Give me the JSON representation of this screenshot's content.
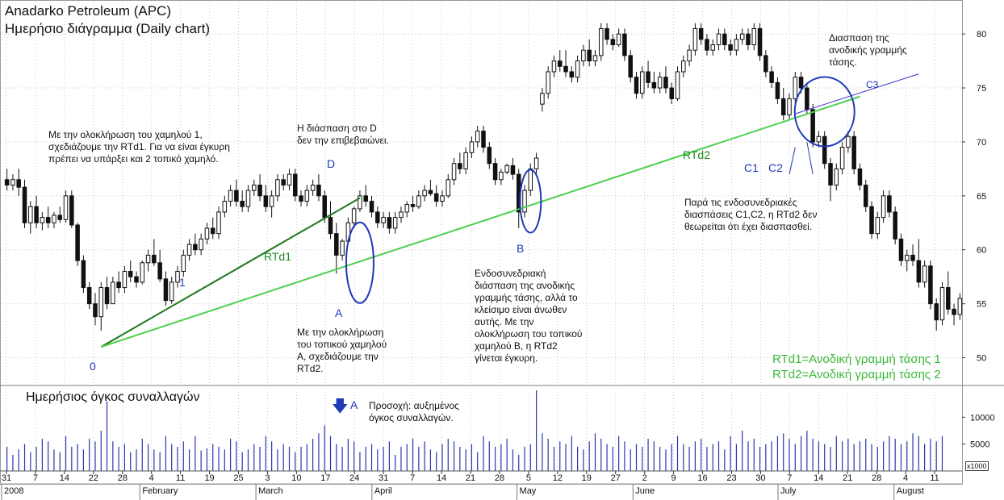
{
  "titles": {
    "line1": "Anadarko Petroleum (APC)",
    "line2": "Ημερήσιο διάγραμμα (Daily chart)"
  },
  "volume_title": "Ημερήσιος όγκος συναλλαγών",
  "volume_units": "x1000",
  "labels": {
    "zero": "0",
    "one": "1",
    "D": "D",
    "A": "A",
    "B": "B",
    "C1": "C1",
    "C2": "C2",
    "C3": "C3",
    "rtd1": "RTd1",
    "rtd2": "RTd2",
    "vol_A": "A"
  },
  "notes": {
    "n1": "Με την ολοκλήρωση του χαμηλού 1,\nσχεδιάζουμε την RTd1. Για να είναι έγκυρη\nπρέπει να υπάρξει και 2 τοπικό χαμηλό.",
    "n2": "Η διάσπαση στο D\nδεν την επιβεβαιώνει.",
    "n3": "Με την ολοκλήρωση\nτου τοπικού χαμηλού\nA, σχεδιάζουμε την\nRTd2.",
    "n4": "Ενδοσυνεδριακή\nδιάσπαση της ανοδικής\nγραμμής τάσης, αλλά το\nκλείσιμο είναι άνωθεν\nαυτής. Με την\nολοκλήρωση του τοπικού\nχαμηλού B, η RTd2\nγίνεται έγκυρη.",
    "n5": "Διασπαση της\nανοδικής γραμμής\nτάσης.",
    "n6": "Παρά τις ενδοσυνεδριακές\nδιασπάσεις C1,C2, η RTd2 δεν\nθεωρείται ότι έχει διασπασθεί.",
    "n7": "Προσοχή: αυξημένος\nόγκος συναλλαγών."
  },
  "legend": {
    "line1": "RTd1=Ανοδική γραμμή τάσης 1",
    "line2": "RTd2=Ανοδική γραμμή τάσης 2"
  },
  "colors": {
    "bg": "#ffffff",
    "candle": "#111111",
    "volume": "#2a35b0",
    "rtd1": "#1f7a1f",
    "rtd2": "#4fcf4f",
    "circle": "#1f39b8",
    "c3": "#3a3acc"
  },
  "chart_data": {
    "type": "candlestick",
    "title": "Anadarko Petroleum (APC)",
    "subtitle": "Ημερήσιο διάγραμμα (Daily chart)",
    "ylim": [
      47.5,
      83
    ],
    "y_ticks": [
      50,
      55,
      60,
      65,
      70,
      75,
      80
    ],
    "volume_ticks": [
      5000,
      10000
    ],
    "volume_ylim": [
      0,
      15000
    ],
    "x_day_ticks": [
      "31",
      "7",
      "14",
      "22",
      "28",
      "4",
      "11",
      "19",
      "25",
      "3",
      "10",
      "17",
      "24",
      "31",
      "7",
      "14",
      "21",
      "28",
      "5",
      "12",
      "19",
      "27",
      "2",
      "9",
      "16",
      "23",
      "30",
      "7",
      "14",
      "21",
      "28",
      "4",
      "11"
    ],
    "x_month_labels": [
      "2008",
      "February",
      "March",
      "April",
      "May",
      "June",
      "July",
      "August"
    ],
    "candles": [
      {
        "o": 66.5,
        "h": 67.5,
        "l": 65.5,
        "c": 66.0
      },
      {
        "o": 66.0,
        "h": 67.0,
        "l": 65.5,
        "c": 66.5
      },
      {
        "o": 66.5,
        "h": 67.5,
        "l": 65.0,
        "c": 65.8
      },
      {
        "o": 65.8,
        "h": 66.5,
        "l": 62.0,
        "c": 62.5
      },
      {
        "o": 62.5,
        "h": 64.5,
        "l": 61.5,
        "c": 64.0
      },
      {
        "o": 64.0,
        "h": 65.0,
        "l": 62.0,
        "c": 62.5
      },
      {
        "o": 62.5,
        "h": 63.5,
        "l": 61.8,
        "c": 63.0
      },
      {
        "o": 63.0,
        "h": 64.0,
        "l": 62.0,
        "c": 62.5
      },
      {
        "o": 62.5,
        "h": 63.5,
        "l": 62.0,
        "c": 63.2
      },
      {
        "o": 63.2,
        "h": 64.0,
        "l": 62.5,
        "c": 62.8
      },
      {
        "o": 62.8,
        "h": 65.5,
        "l": 62.5,
        "c": 65.0
      },
      {
        "o": 65.0,
        "h": 65.5,
        "l": 62.0,
        "c": 62.3
      },
      {
        "o": 62.3,
        "h": 62.5,
        "l": 58.5,
        "c": 59.0
      },
      {
        "o": 59.0,
        "h": 59.5,
        "l": 56.0,
        "c": 56.5
      },
      {
        "o": 56.5,
        "h": 57.0,
        "l": 54.5,
        "c": 55.0
      },
      {
        "o": 55.0,
        "h": 56.0,
        "l": 53.0,
        "c": 53.8
      },
      {
        "o": 53.8,
        "h": 57.0,
        "l": 52.5,
        "c": 56.5
      },
      {
        "o": 56.5,
        "h": 57.5,
        "l": 54.5,
        "c": 55.0
      },
      {
        "o": 55.0,
        "h": 57.5,
        "l": 55.0,
        "c": 57.0
      },
      {
        "o": 57.0,
        "h": 58.0,
        "l": 56.0,
        "c": 56.5
      },
      {
        "o": 56.5,
        "h": 58.5,
        "l": 56.0,
        "c": 58.0
      },
      {
        "o": 58.0,
        "h": 59.0,
        "l": 57.0,
        "c": 57.5
      },
      {
        "o": 57.5,
        "h": 58.0,
        "l": 56.5,
        "c": 57.0
      },
      {
        "o": 57.0,
        "h": 59.0,
        "l": 56.8,
        "c": 58.8
      },
      {
        "o": 58.8,
        "h": 60.0,
        "l": 58.0,
        "c": 59.5
      },
      {
        "o": 59.5,
        "h": 61.0,
        "l": 58.5,
        "c": 58.8
      },
      {
        "o": 58.8,
        "h": 60.0,
        "l": 57.0,
        "c": 57.3
      },
      {
        "o": 57.3,
        "h": 58.0,
        "l": 54.8,
        "c": 55.3
      },
      {
        "o": 55.3,
        "h": 57.5,
        "l": 55.0,
        "c": 57.0
      },
      {
        "o": 57.0,
        "h": 58.5,
        "l": 56.5,
        "c": 58.0
      },
      {
        "o": 58.0,
        "h": 60.0,
        "l": 57.5,
        "c": 59.5
      },
      {
        "o": 59.5,
        "h": 61.0,
        "l": 59.0,
        "c": 60.5
      },
      {
        "o": 60.5,
        "h": 61.5,
        "l": 59.5,
        "c": 60.0
      },
      {
        "o": 60.0,
        "h": 61.5,
        "l": 59.5,
        "c": 61.0
      },
      {
        "o": 61.0,
        "h": 62.5,
        "l": 60.5,
        "c": 62.0
      },
      {
        "o": 62.0,
        "h": 63.0,
        "l": 61.0,
        "c": 61.5
      },
      {
        "o": 61.5,
        "h": 64.0,
        "l": 61.0,
        "c": 63.5
      },
      {
        "o": 63.5,
        "h": 65.0,
        "l": 63.0,
        "c": 64.5
      },
      {
        "o": 64.5,
        "h": 66.0,
        "l": 64.0,
        "c": 65.5
      },
      {
        "o": 65.5,
        "h": 66.5,
        "l": 64.0,
        "c": 64.5
      },
      {
        "o": 64.5,
        "h": 65.5,
        "l": 63.5,
        "c": 64.0
      },
      {
        "o": 64.0,
        "h": 66.0,
        "l": 63.5,
        "c": 65.5
      },
      {
        "o": 65.5,
        "h": 66.5,
        "l": 65.0,
        "c": 66.0
      },
      {
        "o": 66.0,
        "h": 67.0,
        "l": 64.5,
        "c": 65.0
      },
      {
        "o": 65.0,
        "h": 66.0,
        "l": 63.5,
        "c": 64.0
      },
      {
        "o": 64.0,
        "h": 65.5,
        "l": 63.0,
        "c": 65.0
      },
      {
        "o": 65.0,
        "h": 67.0,
        "l": 64.5,
        "c": 66.5
      },
      {
        "o": 66.5,
        "h": 67.0,
        "l": 65.5,
        "c": 66.0
      },
      {
        "o": 66.0,
        "h": 67.5,
        "l": 65.5,
        "c": 67.0
      },
      {
        "o": 67.0,
        "h": 67.5,
        "l": 64.5,
        "c": 65.0
      },
      {
        "o": 65.0,
        "h": 65.5,
        "l": 64.0,
        "c": 64.5
      },
      {
        "o": 64.5,
        "h": 66.0,
        "l": 64.0,
        "c": 65.5
      },
      {
        "o": 65.5,
        "h": 66.5,
        "l": 65.0,
        "c": 66.0
      },
      {
        "o": 66.0,
        "h": 67.0,
        "l": 64.5,
        "c": 65.0
      },
      {
        "o": 65.0,
        "h": 65.5,
        "l": 62.5,
        "c": 63.0
      },
      {
        "o": 63.0,
        "h": 64.5,
        "l": 61.0,
        "c": 61.5
      },
      {
        "o": 61.5,
        "h": 62.5,
        "l": 57.8,
        "c": 59.5
      },
      {
        "o": 59.5,
        "h": 61.0,
        "l": 59.0,
        "c": 60.8
      },
      {
        "o": 60.8,
        "h": 63.0,
        "l": 60.5,
        "c": 62.5
      },
      {
        "o": 62.5,
        "h": 64.0,
        "l": 62.0,
        "c": 63.8
      },
      {
        "o": 63.8,
        "h": 65.5,
        "l": 63.5,
        "c": 65.0
      },
      {
        "o": 65.0,
        "h": 66.0,
        "l": 64.0,
        "c": 64.5
      },
      {
        "o": 64.5,
        "h": 65.0,
        "l": 63.0,
        "c": 63.5
      },
      {
        "o": 63.5,
        "h": 64.0,
        "l": 62.0,
        "c": 62.5
      },
      {
        "o": 62.5,
        "h": 63.5,
        "l": 62.0,
        "c": 63.0
      },
      {
        "o": 63.0,
        "h": 63.5,
        "l": 61.5,
        "c": 62.0
      },
      {
        "o": 62.0,
        "h": 63.5,
        "l": 61.5,
        "c": 63.0
      },
      {
        "o": 63.0,
        "h": 64.0,
        "l": 62.5,
        "c": 63.5
      },
      {
        "o": 63.5,
        "h": 64.5,
        "l": 63.0,
        "c": 64.2
      },
      {
        "o": 64.2,
        "h": 65.0,
        "l": 63.5,
        "c": 64.0
      },
      {
        "o": 64.0,
        "h": 65.5,
        "l": 63.8,
        "c": 65.0
      },
      {
        "o": 65.0,
        "h": 66.0,
        "l": 64.5,
        "c": 65.5
      },
      {
        "o": 65.5,
        "h": 66.5,
        "l": 65.0,
        "c": 65.2
      },
      {
        "o": 65.2,
        "h": 66.0,
        "l": 64.0,
        "c": 64.5
      },
      {
        "o": 64.5,
        "h": 65.5,
        "l": 64.0,
        "c": 65.0
      },
      {
        "o": 65.0,
        "h": 67.0,
        "l": 64.8,
        "c": 66.5
      },
      {
        "o": 66.5,
        "h": 68.5,
        "l": 66.0,
        "c": 68.0
      },
      {
        "o": 68.0,
        "h": 69.0,
        "l": 67.0,
        "c": 67.5
      },
      {
        "o": 67.5,
        "h": 69.5,
        "l": 67.0,
        "c": 69.0
      },
      {
        "o": 69.0,
        "h": 70.5,
        "l": 68.5,
        "c": 70.0
      },
      {
        "o": 70.0,
        "h": 71.5,
        "l": 69.5,
        "c": 71.0
      },
      {
        "o": 71.0,
        "h": 71.5,
        "l": 69.0,
        "c": 69.5
      },
      {
        "o": 69.5,
        "h": 70.0,
        "l": 67.5,
        "c": 68.0
      },
      {
        "o": 68.0,
        "h": 68.5,
        "l": 66.0,
        "c": 66.5
      },
      {
        "o": 66.5,
        "h": 67.5,
        "l": 66.0,
        "c": 67.2
      },
      {
        "o": 67.2,
        "h": 68.0,
        "l": 67.0,
        "c": 67.8
      },
      {
        "o": 67.8,
        "h": 68.5,
        "l": 66.5,
        "c": 67.0
      },
      {
        "o": 67.0,
        "h": 67.5,
        "l": 62.0,
        "c": 63.5
      },
      {
        "o": 63.5,
        "h": 66.0,
        "l": 63.0,
        "c": 65.5
      },
      {
        "o": 65.5,
        "h": 68.0,
        "l": 65.0,
        "c": 67.5
      },
      {
        "o": 67.5,
        "h": 69.0,
        "l": 67.0,
        "c": 68.5
      },
      {
        "o": 73.5,
        "h": 75.0,
        "l": 72.8,
        "c": 74.5
      },
      {
        "o": 74.5,
        "h": 77.0,
        "l": 74.0,
        "c": 76.5
      },
      {
        "o": 76.5,
        "h": 78.0,
        "l": 76.0,
        "c": 77.5
      },
      {
        "o": 77.5,
        "h": 78.5,
        "l": 76.5,
        "c": 77.0
      },
      {
        "o": 77.0,
        "h": 78.5,
        "l": 76.0,
        "c": 76.5
      },
      {
        "o": 76.5,
        "h": 77.0,
        "l": 75.5,
        "c": 76.0
      },
      {
        "o": 76.0,
        "h": 78.0,
        "l": 75.5,
        "c": 77.5
      },
      {
        "o": 77.5,
        "h": 79.0,
        "l": 77.0,
        "c": 78.5
      },
      {
        "o": 78.5,
        "h": 79.5,
        "l": 77.0,
        "c": 77.5
      },
      {
        "o": 77.5,
        "h": 78.5,
        "l": 77.0,
        "c": 78.0
      },
      {
        "o": 78.0,
        "h": 81.0,
        "l": 77.5,
        "c": 80.5
      },
      {
        "o": 80.5,
        "h": 81.0,
        "l": 79.0,
        "c": 79.5
      },
      {
        "o": 79.5,
        "h": 80.0,
        "l": 78.5,
        "c": 79.0
      },
      {
        "o": 79.0,
        "h": 80.5,
        "l": 78.8,
        "c": 80.0
      },
      {
        "o": 80.0,
        "h": 80.5,
        "l": 77.5,
        "c": 78.0
      },
      {
        "o": 78.0,
        "h": 78.5,
        "l": 75.5,
        "c": 76.0
      },
      {
        "o": 76.0,
        "h": 76.5,
        "l": 74.0,
        "c": 74.5
      },
      {
        "o": 74.5,
        "h": 77.0,
        "l": 74.0,
        "c": 76.5
      },
      {
        "o": 76.5,
        "h": 77.5,
        "l": 75.0,
        "c": 75.5
      },
      {
        "o": 75.5,
        "h": 76.5,
        "l": 74.5,
        "c": 75.0
      },
      {
        "o": 75.0,
        "h": 76.5,
        "l": 74.5,
        "c": 76.0
      },
      {
        "o": 76.0,
        "h": 77.0,
        "l": 74.5,
        "c": 75.0
      },
      {
        "o": 75.0,
        "h": 75.5,
        "l": 73.5,
        "c": 74.0
      },
      {
        "o": 74.0,
        "h": 77.0,
        "l": 73.8,
        "c": 76.5
      },
      {
        "o": 76.5,
        "h": 78.0,
        "l": 76.0,
        "c": 77.5
      },
      {
        "o": 77.5,
        "h": 79.0,
        "l": 77.0,
        "c": 78.5
      },
      {
        "o": 78.5,
        "h": 81.0,
        "l": 78.0,
        "c": 80.5
      },
      {
        "o": 80.5,
        "h": 81.0,
        "l": 79.0,
        "c": 79.5
      },
      {
        "o": 79.5,
        "h": 80.0,
        "l": 78.0,
        "c": 78.5
      },
      {
        "o": 78.5,
        "h": 79.5,
        "l": 78.0,
        "c": 79.0
      },
      {
        "o": 79.0,
        "h": 80.5,
        "l": 78.5,
        "c": 80.0
      },
      {
        "o": 80.0,
        "h": 80.5,
        "l": 78.5,
        "c": 79.0
      },
      {
        "o": 79.0,
        "h": 79.5,
        "l": 78.0,
        "c": 78.5
      },
      {
        "o": 78.5,
        "h": 80.0,
        "l": 78.0,
        "c": 79.5
      },
      {
        "o": 79.5,
        "h": 80.5,
        "l": 79.0,
        "c": 80.0
      },
      {
        "o": 80.0,
        "h": 80.5,
        "l": 78.5,
        "c": 79.0
      },
      {
        "o": 79.0,
        "h": 81.0,
        "l": 78.5,
        "c": 80.5
      },
      {
        "o": 80.5,
        "h": 81.0,
        "l": 77.5,
        "c": 78.0
      },
      {
        "o": 78.0,
        "h": 78.5,
        "l": 76.0,
        "c": 76.5
      },
      {
        "o": 76.5,
        "h": 77.0,
        "l": 75.0,
        "c": 75.5
      },
      {
        "o": 75.5,
        "h": 76.0,
        "l": 73.5,
        "c": 74.0
      },
      {
        "o": 74.0,
        "h": 75.0,
        "l": 72.0,
        "c": 72.5
      },
      {
        "o": 72.5,
        "h": 74.5,
        "l": 72.0,
        "c": 74.0
      },
      {
        "o": 74.0,
        "h": 76.5,
        "l": 73.5,
        "c": 76.0
      },
      {
        "o": 76.0,
        "h": 76.5,
        "l": 74.5,
        "c": 75.0
      },
      {
        "o": 75.0,
        "h": 75.5,
        "l": 72.5,
        "c": 73.0
      },
      {
        "o": 73.0,
        "h": 73.5,
        "l": 69.5,
        "c": 70.0
      },
      {
        "o": 70.0,
        "h": 71.0,
        "l": 69.5,
        "c": 70.5
      },
      {
        "o": 70.5,
        "h": 71.0,
        "l": 67.5,
        "c": 68.0
      },
      {
        "o": 68.0,
        "h": 68.5,
        "l": 64.5,
        "c": 66.0
      },
      {
        "o": 66.0,
        "h": 68.0,
        "l": 65.5,
        "c": 67.5
      },
      {
        "o": 67.5,
        "h": 70.0,
        "l": 67.0,
        "c": 69.5
      },
      {
        "o": 69.5,
        "h": 71.0,
        "l": 69.0,
        "c": 70.5
      },
      {
        "o": 70.5,
        "h": 71.0,
        "l": 67.0,
        "c": 67.5
      },
      {
        "o": 67.5,
        "h": 68.0,
        "l": 65.5,
        "c": 66.0
      },
      {
        "o": 66.0,
        "h": 66.5,
        "l": 63.5,
        "c": 64.0
      },
      {
        "o": 64.0,
        "h": 64.5,
        "l": 61.0,
        "c": 61.5
      },
      {
        "o": 61.5,
        "h": 63.5,
        "l": 61.0,
        "c": 63.0
      },
      {
        "o": 63.0,
        "h": 65.5,
        "l": 62.5,
        "c": 65.0
      },
      {
        "o": 65.0,
        "h": 65.5,
        "l": 63.0,
        "c": 63.5
      },
      {
        "o": 63.5,
        "h": 64.0,
        "l": 60.5,
        "c": 61.0
      },
      {
        "o": 61.0,
        "h": 61.5,
        "l": 58.5,
        "c": 59.0
      },
      {
        "o": 59.0,
        "h": 60.0,
        "l": 58.0,
        "c": 59.5
      },
      {
        "o": 59.5,
        "h": 60.5,
        "l": 58.5,
        "c": 59.0
      },
      {
        "o": 59.0,
        "h": 61.0,
        "l": 56.5,
        "c": 57.0
      },
      {
        "o": 57.0,
        "h": 59.0,
        "l": 56.5,
        "c": 58.5
      },
      {
        "o": 58.5,
        "h": 59.0,
        "l": 54.5,
        "c": 55.0
      },
      {
        "o": 55.0,
        "h": 55.5,
        "l": 52.5,
        "c": 53.5
      },
      {
        "o": 53.5,
        "h": 57.0,
        "l": 53.0,
        "c": 56.5
      },
      {
        "o": 56.5,
        "h": 58.0,
        "l": 54.0,
        "c": 54.5
      },
      {
        "o": 54.5,
        "h": 55.0,
        "l": 53.0,
        "c": 54.0
      },
      {
        "o": 54.0,
        "h": 56.0,
        "l": 53.5,
        "c": 55.5
      }
    ],
    "volume": [
      4500,
      3000,
      4000,
      5000,
      3500,
      4500,
      6000,
      5500,
      4000,
      3500,
      6500,
      4500,
      5000,
      4000,
      6000,
      5500,
      7500,
      13000,
      5500,
      4500,
      5000,
      3500,
      4000,
      6000,
      5000,
      4000,
      3500,
      6500,
      5000,
      4500,
      5500,
      4000,
      6500,
      3800,
      4200,
      5000,
      4500,
      4000,
      6000,
      5500,
      3500,
      4000,
      5000,
      4500,
      6500,
      5500,
      4000,
      5000,
      4500,
      3500,
      4500,
      5000,
      6000,
      7000,
      8500,
      6500,
      5000,
      4500,
      6000,
      5500,
      3500,
      4500,
      5000,
      4000,
      4500,
      5500,
      3000,
      4500,
      5000,
      6000,
      4500,
      5500,
      4000,
      3500,
      5000,
      6000,
      5500,
      4500,
      4000,
      5000,
      3500,
      6500,
      5500,
      4500,
      5000,
      6000,
      4000,
      3000,
      4500,
      5000,
      15000,
      7000,
      6000,
      4500,
      5500,
      5000,
      6500,
      4500,
      4000,
      5500,
      7000,
      6000,
      5000,
      4500,
      6500,
      5500,
      4000,
      5000,
      4500,
      6000,
      5500,
      4500,
      4000,
      5000,
      6500,
      5000,
      4500,
      5500,
      6000,
      4500,
      5000,
      5500,
      4000,
      6500,
      5000,
      7500,
      5500,
      6000,
      4500,
      5000,
      5500,
      6500,
      7000,
      6000,
      5000,
      6500,
      7500,
      6000,
      5500,
      5000,
      4500,
      6500,
      5500,
      6000,
      5000,
      5500,
      6000,
      5000,
      4500,
      5500,
      6500,
      6000,
      5000,
      5500,
      7000,
      6500,
      5000,
      6000,
      5500,
      6500
    ]
  }
}
